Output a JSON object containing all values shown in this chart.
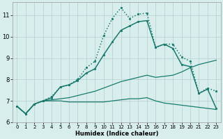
{
  "xlabel": "Humidex (Indice chaleur)",
  "background_color": "#d7eeed",
  "grid_color": "#b5cece",
  "line_color": "#1a7a6e",
  "xlim": [
    -0.5,
    23.5
  ],
  "ylim": [
    6.0,
    11.6
  ],
  "yticks": [
    6,
    7,
    8,
    9,
    10,
    11
  ],
  "xticks": [
    0,
    1,
    2,
    3,
    4,
    5,
    6,
    7,
    8,
    9,
    10,
    11,
    12,
    13,
    14,
    15,
    16,
    17,
    18,
    19,
    20,
    21,
    22,
    23
  ],
  "series": [
    {
      "x": [
        0,
        1,
        2,
        3,
        4,
        5,
        6,
        7,
        8,
        9,
        10,
        11,
        12,
        13,
        14,
        15,
        16,
        17,
        18,
        19,
        20,
        21,
        22,
        23
      ],
      "y": [
        6.75,
        6.4,
        6.85,
        7.0,
        7.2,
        7.65,
        7.75,
        8.0,
        8.55,
        8.85,
        10.05,
        10.85,
        11.35,
        10.85,
        11.05,
        11.1,
        9.5,
        9.65,
        9.65,
        9.05,
        8.85,
        7.35,
        7.6,
        7.45
      ],
      "marker": ".",
      "linestyle": ":",
      "linewidth": 1.1,
      "markersize": 3.5
    },
    {
      "x": [
        0,
        1,
        2,
        3,
        4,
        5,
        6,
        7,
        8,
        9,
        10,
        11,
        12,
        13,
        14,
        15,
        16,
        17,
        18,
        19,
        20,
        21,
        22,
        23
      ],
      "y": [
        6.75,
        6.4,
        6.85,
        7.0,
        7.15,
        7.65,
        7.75,
        7.95,
        8.3,
        8.5,
        9.15,
        9.75,
        10.3,
        10.5,
        10.7,
        10.75,
        9.5,
        9.65,
        9.45,
        8.7,
        8.6,
        7.35,
        7.55,
        6.65
      ],
      "marker": ".",
      "linestyle": "-",
      "linewidth": 1.1,
      "markersize": 3.5
    },
    {
      "x": [
        0,
        1,
        2,
        3,
        4,
        5,
        6,
        7,
        8,
        9,
        10,
        11,
        12,
        13,
        14,
        15,
        16,
        17,
        18,
        19,
        20,
        21,
        22,
        23
      ],
      "y": [
        6.75,
        6.4,
        6.85,
        7.0,
        7.05,
        7.1,
        7.15,
        7.25,
        7.35,
        7.45,
        7.6,
        7.75,
        7.9,
        8.0,
        8.1,
        8.2,
        8.1,
        8.15,
        8.2,
        8.35,
        8.55,
        8.7,
        8.8,
        8.9
      ],
      "marker": null,
      "linestyle": "-",
      "linewidth": 0.9,
      "markersize": 0
    },
    {
      "x": [
        0,
        1,
        2,
        3,
        4,
        5,
        6,
        7,
        8,
        9,
        10,
        11,
        12,
        13,
        14,
        15,
        16,
        17,
        18,
        19,
        20,
        21,
        22,
        23
      ],
      "y": [
        6.75,
        6.4,
        6.85,
        7.0,
        7.0,
        7.0,
        6.95,
        6.95,
        6.95,
        6.95,
        6.95,
        7.0,
        7.05,
        7.1,
        7.1,
        7.15,
        7.0,
        6.9,
        6.85,
        6.8,
        6.75,
        6.7,
        6.65,
        6.6
      ],
      "marker": null,
      "linestyle": "-",
      "linewidth": 0.9,
      "markersize": 0
    }
  ]
}
